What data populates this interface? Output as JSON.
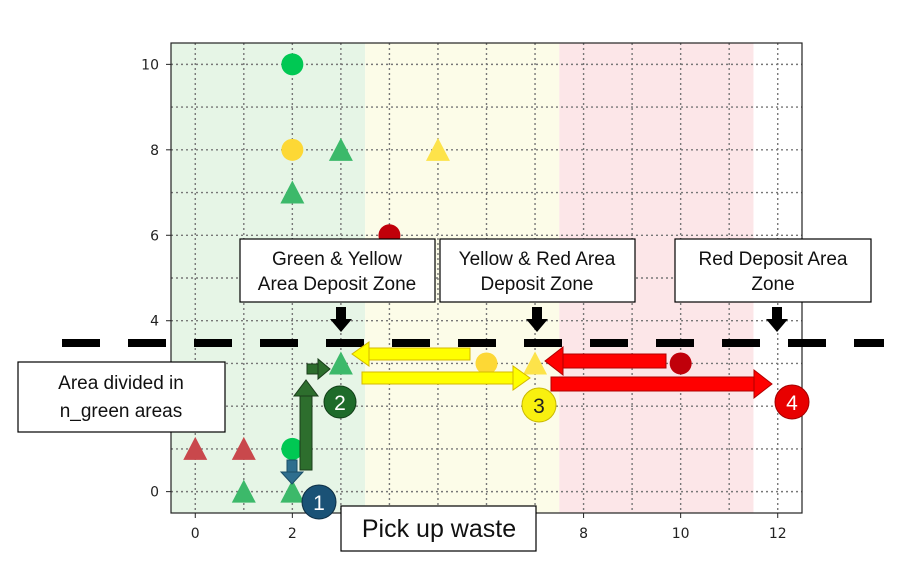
{
  "chart_data": {
    "type": "scatter",
    "xlim": [
      -0.5,
      12.5
    ],
    "ylim": [
      -0.5,
      10.5
    ],
    "x_ticks": [
      0,
      2,
      4,
      6,
      8,
      10,
      12
    ],
    "y_ticks": [
      0,
      2,
      4,
      6,
      8,
      10
    ],
    "grid": true,
    "zones": [
      {
        "name": "green",
        "x_start": -0.5,
        "x_end": 3.5,
        "color": "#e6f5e6"
      },
      {
        "name": "yellow",
        "x_start": 3.5,
        "x_end": 7.5,
        "color": "#fcfce8"
      },
      {
        "name": "red",
        "x_start": 7.5,
        "x_end": 11.5,
        "color": "#fce6e8"
      }
    ],
    "series": [
      {
        "shape": "circle",
        "color": "#00c853",
        "points": [
          [
            2,
            10
          ],
          [
            2,
            1
          ]
        ]
      },
      {
        "shape": "circle",
        "color": "#fdd835",
        "points": [
          [
            2,
            8
          ],
          [
            6,
            3
          ]
        ]
      },
      {
        "shape": "circle",
        "color": "#c0000a",
        "points": [
          [
            4,
            6
          ],
          [
            10,
            3
          ]
        ]
      },
      {
        "shape": "triangle",
        "color": "#3cb96a",
        "points": [
          [
            3,
            8
          ],
          [
            2,
            7
          ],
          [
            1,
            0
          ],
          [
            2,
            0
          ],
          [
            3,
            3
          ]
        ]
      },
      {
        "shape": "triangle",
        "color": "#fde34a",
        "points": [
          [
            5,
            8
          ],
          [
            7,
            3
          ]
        ]
      },
      {
        "shape": "triangle",
        "color": "#c9484c",
        "points": [
          [
            0,
            1
          ],
          [
            1,
            1
          ]
        ]
      }
    ]
  },
  "callouts": {
    "green_yellow_line1": "Green & Yellow",
    "green_yellow_line2": "Area Deposit Zone",
    "yellow_red_line1": "Yellow & Red Area",
    "yellow_red_line2": "Deposit Zone",
    "red_line1": "Red Deposit Area",
    "red_line2": "Zone",
    "divided_line1": "Area divided in",
    "divided_line2": "n_green areas",
    "pickup": "Pick up waste"
  },
  "markers": [
    {
      "number": "1",
      "color": "#1a5276"
    },
    {
      "number": "2",
      "color": "#1e6b2a"
    },
    {
      "number": "3",
      "color": "#f9f00f"
    },
    {
      "number": "4",
      "color": "#e80000"
    }
  ],
  "colors": {
    "dark_green_arrow": "#2d6e2d",
    "yellow_arrow": "#ffff00",
    "red_arrow": "#ff0000",
    "blue_arrow": "#2e6e8e"
  }
}
